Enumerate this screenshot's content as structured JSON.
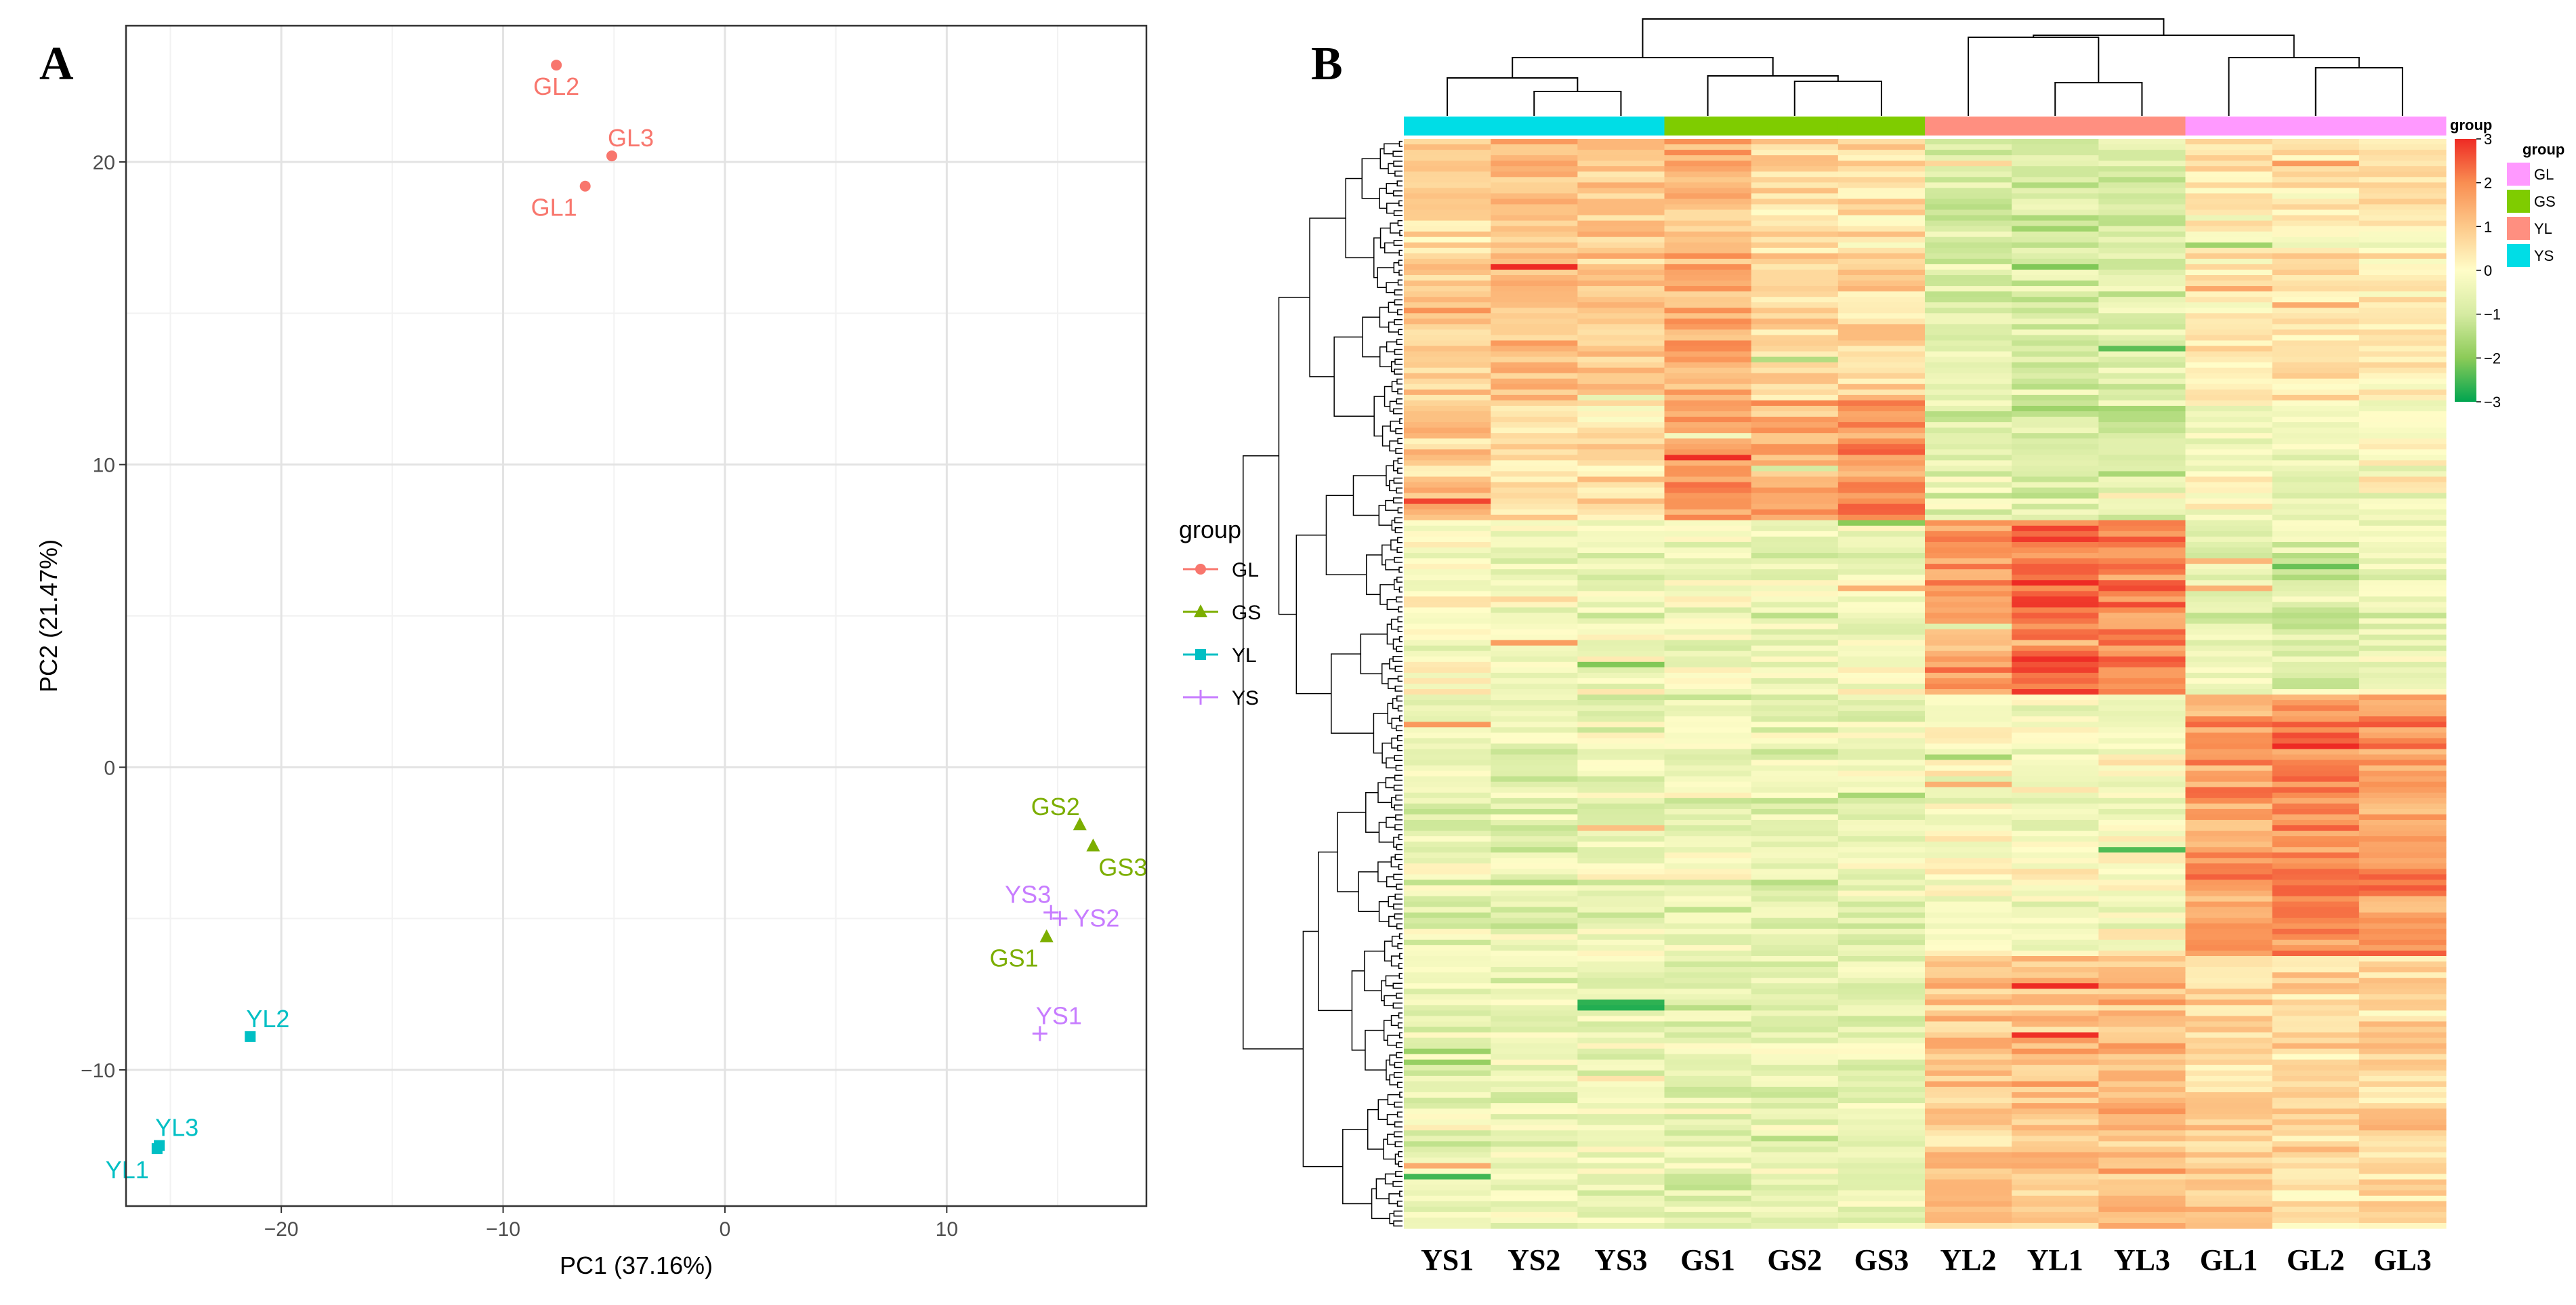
{
  "panels": {
    "a_letter": "A",
    "b_letter": "B"
  },
  "chart_data": [
    {
      "type": "scatter",
      "title": "",
      "xlabel": "PC1 (37.16%)",
      "ylabel": "PC2 (21.47%)",
      "xlim": [
        -27,
        19
      ],
      "ylim": [
        -14.5,
        24.5
      ],
      "xticks": [
        -20,
        -10,
        0,
        10
      ],
      "yticks": [
        -10,
        0,
        10,
        20
      ],
      "xtick_labels": [
        "−20",
        "−10",
        "0",
        "10"
      ],
      "ytick_labels": [
        "−10",
        "0",
        "10",
        "20"
      ],
      "grid": true,
      "legend": {
        "title": "group",
        "position": "right",
        "entries": [
          {
            "label": "GL",
            "color": "#F8766D",
            "shape": "circle"
          },
          {
            "label": "GS",
            "color": "#7CAE00",
            "shape": "triangle"
          },
          {
            "label": "YL",
            "color": "#00BFC4",
            "shape": "square"
          },
          {
            "label": "YS",
            "color": "#C77CFF",
            "shape": "plus"
          }
        ]
      },
      "series": [
        {
          "name": "GL",
          "color": "#F8766D",
          "shape": "circle",
          "points": [
            {
              "label": "GL1",
              "x": -6.3,
              "y": 19.2,
              "label_pos": "below-left"
            },
            {
              "label": "GL2",
              "x": -7.6,
              "y": 23.2,
              "label_pos": "below"
            },
            {
              "label": "GL3",
              "x": -5.1,
              "y": 20.2,
              "label_pos": "above-right"
            }
          ]
        },
        {
          "name": "GS",
          "color": "#7CAE00",
          "shape": "triangle",
          "points": [
            {
              "label": "GS1",
              "x": 14.5,
              "y": -5.6,
              "label_pos": "below-left"
            },
            {
              "label": "GS2",
              "x": 16.0,
              "y": -1.9,
              "label_pos": "above-left"
            },
            {
              "label": "GS3",
              "x": 16.6,
              "y": -2.6,
              "label_pos": "below-right"
            }
          ]
        },
        {
          "name": "YL",
          "color": "#00BFC4",
          "shape": "square",
          "points": [
            {
              "label": "YL1",
              "x": -25.6,
              "y": -12.6,
              "label_pos": "below-left"
            },
            {
              "label": "YL2",
              "x": -21.4,
              "y": -8.9,
              "label_pos": "above-right"
            },
            {
              "label": "YL3",
              "x": -25.5,
              "y": -12.5,
              "label_pos": "above-right"
            }
          ]
        },
        {
          "name": "YS",
          "color": "#C77CFF",
          "shape": "plus",
          "points": [
            {
              "label": "YS1",
              "x": 14.2,
              "y": -8.8,
              "label_pos": "above-right"
            },
            {
              "label": "YS2",
              "x": 15.1,
              "y": -5.0,
              "label_pos": "right"
            },
            {
              "label": "YS3",
              "x": 14.7,
              "y": -4.8,
              "label_pos": "above-left"
            }
          ]
        }
      ]
    },
    {
      "type": "heatmap",
      "title": "",
      "columns": [
        "YS1",
        "YS2",
        "YS3",
        "GS1",
        "GS2",
        "GS3",
        "YL2",
        "YL1",
        "YL3",
        "GL1",
        "GL2",
        "GL3"
      ],
      "column_groups": [
        "YS",
        "YS",
        "YS",
        "GS",
        "GS",
        "GS",
        "YL",
        "YL",
        "YL",
        "GL",
        "GL",
        "GL"
      ],
      "group_annotation": {
        "title": "group",
        "entries": [
          {
            "label": "GL",
            "color": "#FF99FF"
          },
          {
            "label": "GS",
            "color": "#7FCC00"
          },
          {
            "label": "YL",
            "color": "#FF8F80"
          },
          {
            "label": "YS",
            "color": "#00DDE6"
          }
        ]
      },
      "color_scale": {
        "min": -3,
        "max": 3,
        "ticks": [
          3,
          2,
          1,
          0,
          -1,
          -2,
          -3
        ],
        "tick_labels": [
          "3",
          "2",
          "1",
          "0",
          "−1",
          "−2",
          "−3"
        ],
        "colors": [
          "#00A550",
          "#8CCB58",
          "#D6EBA2",
          "#FFFDC8",
          "#FDC98A",
          "#F98E52",
          "#EE2A24"
        ]
      },
      "row_blocks": [
        {
          "rows": 48,
          "values": [
            0.8,
            1.1,
            1.0,
            1.4,
            0.7,
            0.7,
            -0.8,
            -0.9,
            -0.8,
            0.3,
            0.4,
            0.3
          ]
        },
        {
          "rows": 22,
          "values": [
            0.9,
            0.5,
            0.6,
            1.7,
            1.5,
            1.9,
            -0.7,
            -0.9,
            -0.8,
            -0.2,
            -0.5,
            -0.1
          ]
        },
        {
          "rows": 32,
          "values": [
            -0.2,
            -0.5,
            -0.4,
            -0.4,
            -0.5,
            -0.4,
            1.6,
            2.2,
            2.0,
            -0.6,
            -0.8,
            -0.6
          ]
        },
        {
          "rows": 48,
          "values": [
            -0.6,
            -0.6,
            -0.5,
            -0.5,
            -0.6,
            -0.6,
            -0.1,
            -0.2,
            -0.2,
            1.6,
            2.0,
            1.8
          ]
        },
        {
          "rows": 50,
          "values": [
            -0.5,
            -0.5,
            -0.5,
            -0.6,
            -0.6,
            -0.6,
            1.0,
            1.1,
            1.2,
            0.8,
            0.6,
            0.7
          ]
        }
      ]
    }
  ]
}
